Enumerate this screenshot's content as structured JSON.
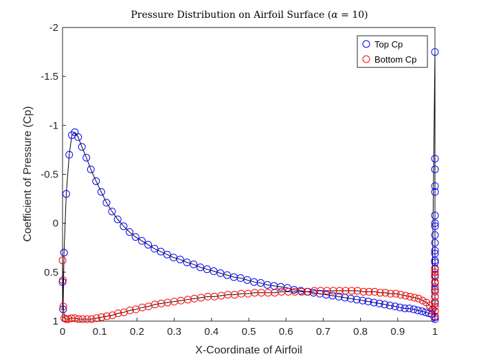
{
  "chart_data": {
    "type": "scatter",
    "title": "Pressure Distribution on Airfoil Surface (α = 10)",
    "xlabel": "X-Coordinate of Airfoil",
    "ylabel": "Coefficient of Pressure (Cp)",
    "xlim": [
      0,
      1
    ],
    "ylim": [
      -2,
      1
    ],
    "y_reversed": true,
    "xticks": [
      "0",
      "0.1",
      "0.2",
      "0.3",
      "0.4",
      "0.5",
      "0.6",
      "0.7",
      "0.8",
      "0.9",
      "1"
    ],
    "yticks": [
      "-2",
      "-1.5",
      "-1",
      "-0.5",
      "0",
      "0.5",
      "1"
    ],
    "grid": false,
    "legend_position": "top-right",
    "series": [
      {
        "name": "Top Cp",
        "color": "#0000ff",
        "marker": "circle-open",
        "points": [
          [
            0.0,
            0.6
          ],
          [
            0.0015,
            0.88
          ],
          [
            0.004,
            0.3
          ],
          [
            0.01,
            -0.3
          ],
          [
            0.018,
            -0.7
          ],
          [
            0.025,
            -0.9
          ],
          [
            0.033,
            -0.93
          ],
          [
            0.042,
            -0.88
          ],
          [
            0.052,
            -0.78
          ],
          [
            0.064,
            -0.67
          ],
          [
            0.076,
            -0.55
          ],
          [
            0.09,
            -0.43
          ],
          [
            0.104,
            -0.32
          ],
          [
            0.118,
            -0.21
          ],
          [
            0.133,
            -0.12
          ],
          [
            0.148,
            -0.04
          ],
          [
            0.164,
            0.03
          ],
          [
            0.18,
            0.09
          ],
          [
            0.196,
            0.14
          ],
          [
            0.213,
            0.18
          ],
          [
            0.23,
            0.22
          ],
          [
            0.247,
            0.26
          ],
          [
            0.264,
            0.29
          ],
          [
            0.281,
            0.32
          ],
          [
            0.298,
            0.35
          ],
          [
            0.316,
            0.37
          ],
          [
            0.334,
            0.4
          ],
          [
            0.352,
            0.42
          ],
          [
            0.37,
            0.45
          ],
          [
            0.388,
            0.47
          ],
          [
            0.406,
            0.49
          ],
          [
            0.424,
            0.51
          ],
          [
            0.442,
            0.53
          ],
          [
            0.46,
            0.55
          ],
          [
            0.478,
            0.56
          ],
          [
            0.496,
            0.58
          ],
          [
            0.514,
            0.6
          ],
          [
            0.532,
            0.61
          ],
          [
            0.55,
            0.63
          ],
          [
            0.568,
            0.64
          ],
          [
            0.586,
            0.65
          ],
          [
            0.604,
            0.66
          ],
          [
            0.622,
            0.68
          ],
          [
            0.64,
            0.69
          ],
          [
            0.657,
            0.7
          ],
          [
            0.674,
            0.71
          ],
          [
            0.691,
            0.72
          ],
          [
            0.708,
            0.73
          ],
          [
            0.725,
            0.74
          ],
          [
            0.742,
            0.75
          ],
          [
            0.758,
            0.76
          ],
          [
            0.774,
            0.77
          ],
          [
            0.79,
            0.78
          ],
          [
            0.806,
            0.79
          ],
          [
            0.821,
            0.8
          ],
          [
            0.836,
            0.81
          ],
          [
            0.851,
            0.82
          ],
          [
            0.865,
            0.83
          ],
          [
            0.879,
            0.84
          ],
          [
            0.893,
            0.85
          ],
          [
            0.906,
            0.86
          ],
          [
            0.919,
            0.87
          ],
          [
            0.931,
            0.87
          ],
          [
            0.943,
            0.88
          ],
          [
            0.954,
            0.89
          ],
          [
            0.965,
            0.9
          ],
          [
            0.975,
            0.91
          ],
          [
            0.984,
            0.92
          ],
          [
            0.992,
            0.93
          ],
          [
            1.0,
            -1.75
          ],
          [
            1.0,
            -0.66
          ],
          [
            1.0,
            -0.55
          ],
          [
            1.0,
            -0.38
          ],
          [
            1.0,
            -0.32
          ],
          [
            1.0,
            -0.08
          ],
          [
            1.0,
            0.0
          ],
          [
            1.0,
            0.03
          ],
          [
            1.0,
            0.12
          ],
          [
            1.0,
            0.2
          ],
          [
            1.0,
            0.28
          ],
          [
            1.0,
            0.31
          ],
          [
            1.0,
            0.38
          ],
          [
            1.0,
            0.4
          ],
          [
            1.0,
            0.46
          ],
          [
            1.0,
            0.53
          ],
          [
            1.0,
            0.61
          ],
          [
            1.0,
            0.68
          ],
          [
            1.0,
            0.75
          ],
          [
            1.0,
            0.82
          ],
          [
            1.0,
            0.9
          ],
          [
            1.0,
            0.96
          ],
          [
            1.0,
            0.98
          ]
        ]
      },
      {
        "name": "Bottom Cp",
        "color": "#ff0000",
        "marker": "circle-open",
        "points": [
          [
            0.0,
            0.38
          ],
          [
            0.001,
            0.58
          ],
          [
            0.002,
            0.85
          ],
          [
            0.005,
            0.97
          ],
          [
            0.01,
            0.98
          ],
          [
            0.016,
            0.98
          ],
          [
            0.024,
            0.97
          ],
          [
            0.033,
            0.97
          ],
          [
            0.043,
            0.98
          ],
          [
            0.054,
            0.98
          ],
          [
            0.066,
            0.98
          ],
          [
            0.078,
            0.98
          ],
          [
            0.091,
            0.97
          ],
          [
            0.105,
            0.96
          ],
          [
            0.119,
            0.95
          ],
          [
            0.134,
            0.94
          ],
          [
            0.149,
            0.92
          ],
          [
            0.165,
            0.91
          ],
          [
            0.181,
            0.89
          ],
          [
            0.197,
            0.88
          ],
          [
            0.214,
            0.86
          ],
          [
            0.231,
            0.85
          ],
          [
            0.248,
            0.83
          ],
          [
            0.265,
            0.82
          ],
          [
            0.282,
            0.81
          ],
          [
            0.3,
            0.8
          ],
          [
            0.318,
            0.79
          ],
          [
            0.336,
            0.78
          ],
          [
            0.354,
            0.77
          ],
          [
            0.372,
            0.76
          ],
          [
            0.39,
            0.75
          ],
          [
            0.408,
            0.75
          ],
          [
            0.426,
            0.74
          ],
          [
            0.444,
            0.73
          ],
          [
            0.462,
            0.73
          ],
          [
            0.48,
            0.72
          ],
          [
            0.498,
            0.72
          ],
          [
            0.516,
            0.71
          ],
          [
            0.534,
            0.71
          ],
          [
            0.552,
            0.71
          ],
          [
            0.57,
            0.71
          ],
          [
            0.588,
            0.7
          ],
          [
            0.606,
            0.7
          ],
          [
            0.624,
            0.7
          ],
          [
            0.642,
            0.7
          ],
          [
            0.659,
            0.7
          ],
          [
            0.676,
            0.69
          ],
          [
            0.693,
            0.69
          ],
          [
            0.71,
            0.69
          ],
          [
            0.727,
            0.69
          ],
          [
            0.744,
            0.69
          ],
          [
            0.76,
            0.69
          ],
          [
            0.776,
            0.69
          ],
          [
            0.792,
            0.69
          ],
          [
            0.808,
            0.7
          ],
          [
            0.823,
            0.7
          ],
          [
            0.838,
            0.7
          ],
          [
            0.853,
            0.71
          ],
          [
            0.867,
            0.71
          ],
          [
            0.881,
            0.72
          ],
          [
            0.895,
            0.72
          ],
          [
            0.908,
            0.73
          ],
          [
            0.921,
            0.74
          ],
          [
            0.933,
            0.75
          ],
          [
            0.945,
            0.76
          ],
          [
            0.956,
            0.77
          ],
          [
            0.967,
            0.79
          ],
          [
            0.977,
            0.81
          ],
          [
            0.986,
            0.84
          ],
          [
            0.994,
            0.88
          ],
          [
            1.0,
            0.95
          ],
          [
            1.0,
            0.9
          ],
          [
            1.0,
            0.85
          ],
          [
            1.0,
            0.8
          ],
          [
            1.0,
            0.75
          ],
          [
            1.0,
            0.7
          ],
          [
            1.0,
            0.65
          ],
          [
            1.0,
            0.6
          ],
          [
            1.0,
            0.55
          ],
          [
            1.0,
            0.5
          ],
          [
            1.0,
            0.47
          ]
        ]
      }
    ],
    "line_color": "#000000"
  }
}
